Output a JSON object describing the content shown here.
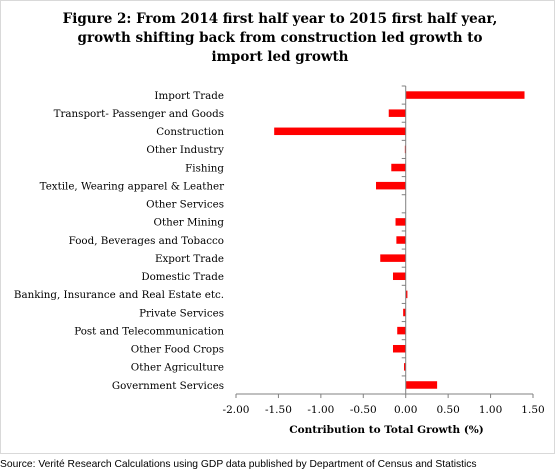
{
  "chart_data": {
    "type": "bar",
    "orientation": "horizontal",
    "title": "Figure 2: From  2014 first half year to 2015 first half year, growth shifting back from construction led growth to import led growth",
    "title_lines": [
      "Figure 2: From  2014 first half year to 2015 first half year,",
      "growth shifting back from construction led growth to",
      "import led growth"
    ],
    "xlabel": "Contribution to Total Growth (%)",
    "ylabel": "",
    "xlim": [
      -2.0,
      1.5
    ],
    "x_ticks": [
      "-2.00",
      "-1.50",
      "-1.00",
      "-0.50",
      "0.00",
      "0.50",
      "1.00",
      "1.50"
    ],
    "grid": false,
    "legend": "none",
    "bar_color": "#ff0000",
    "categories": [
      "Import Trade",
      "Transport- Passenger and Goods",
      "Construction",
      "Other Industry",
      "Fishing",
      "Textile, Wearing  apparel & Leather",
      "Other Services",
      "Other Mining",
      "Food, Beverages and Tobacco",
      "Export Trade",
      "Domestic Trade",
      "Banking, Insurance and Real Estate etc.",
      "Private Services",
      "Post and Telecommunication",
      "Other Food Crops",
      "Other Agriculture",
      "Government Services"
    ],
    "values": [
      1.4,
      -0.2,
      -1.55,
      -0.01,
      -0.17,
      -0.35,
      0.0,
      -0.12,
      -0.11,
      -0.3,
      -0.15,
      0.02,
      -0.03,
      -0.1,
      -0.15,
      -0.02,
      0.37
    ]
  },
  "source": "Source: Verité Research Calculations using GDP data published by Department of Census and Statistics"
}
